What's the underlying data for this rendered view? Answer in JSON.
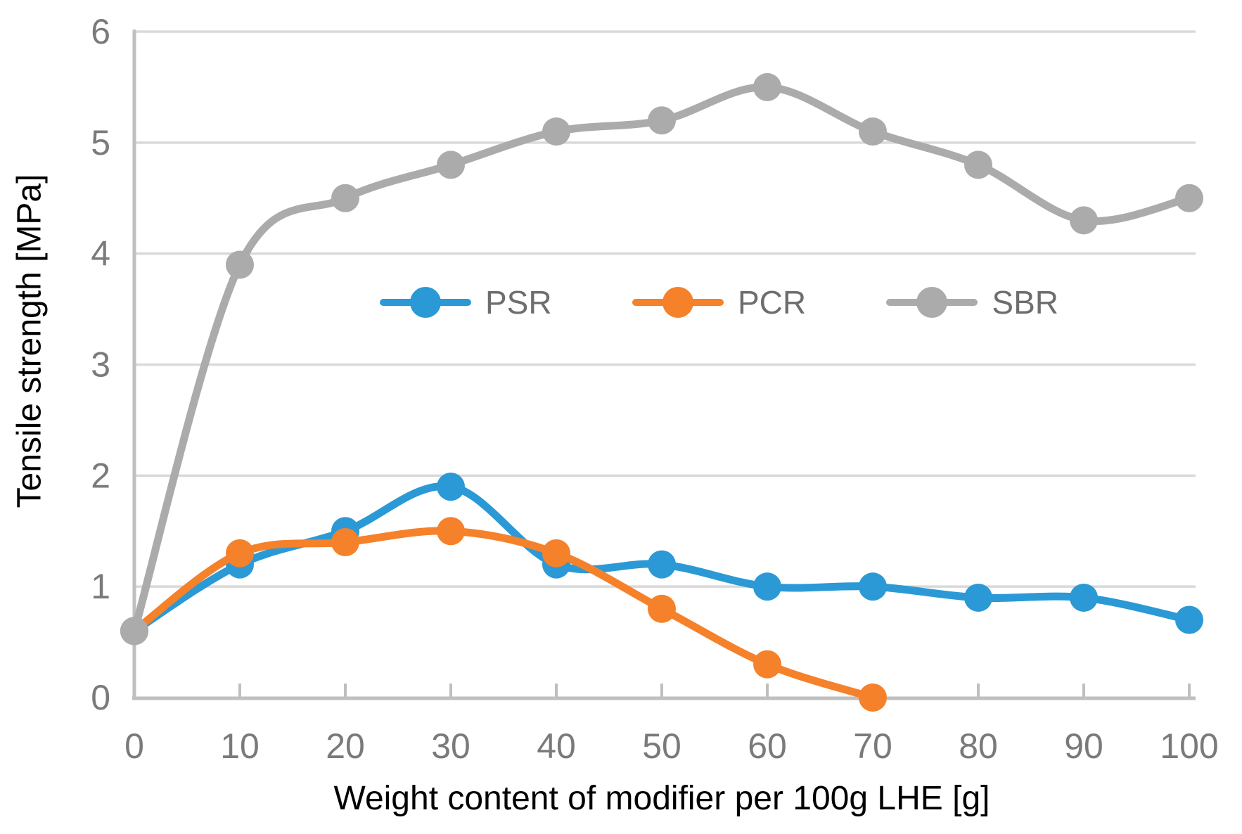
{
  "chart_data": {
    "type": "line",
    "title": "",
    "xlabel": "Weight content of modifier per 100g LHE [g]",
    "ylabel": "Tensile strength [MPa]",
    "x": [
      0,
      10,
      20,
      30,
      40,
      50,
      60,
      70,
      80,
      90,
      100
    ],
    "xlim": [
      0,
      100
    ],
    "ylim": [
      0,
      6
    ],
    "x_ticks": [
      0,
      10,
      20,
      30,
      40,
      50,
      60,
      70,
      80,
      90,
      100
    ],
    "y_ticks": [
      0,
      1,
      2,
      3,
      4,
      5,
      6
    ],
    "grid": "horizontal",
    "line_style": "smooth",
    "markers": "circle",
    "legend_position": "inside-top-center",
    "series": [
      {
        "name": "PSR",
        "color": "#2B99D5",
        "values": [
          0.6,
          1.2,
          1.5,
          1.9,
          1.2,
          1.2,
          1.0,
          1.0,
          0.9,
          0.9,
          0.7
        ]
      },
      {
        "name": "PCR",
        "color": "#F5812A",
        "values": [
          0.6,
          1.3,
          1.4,
          1.5,
          1.3,
          0.8,
          0.3,
          0.0
        ]
      },
      {
        "name": "SBR",
        "color": "#ABABAB",
        "values": [
          0.6,
          3.9,
          4.5,
          4.8,
          5.1,
          5.2,
          5.5,
          5.1,
          4.8,
          4.3,
          4.5
        ]
      }
    ],
    "colors": {
      "background": "#FFFFFF",
      "grid": "#D9D9D9",
      "axis": "#BFBFBF",
      "tick_label": "#7A7A7A",
      "legend_text": "#6E6E6E",
      "axis_title": "#000000"
    }
  }
}
